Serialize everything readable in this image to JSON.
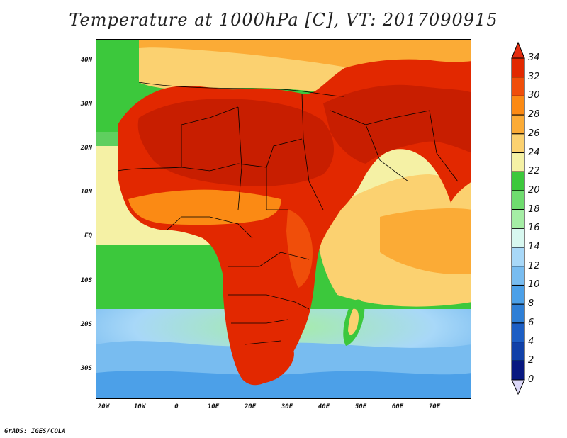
{
  "title": "Temperature at 1000hPa [C], VT: 2017090915",
  "footer": "GrADS: IGES/COLA",
  "map": {
    "lat_labels": [
      "40N",
      "30N",
      "20N",
      "10N",
      "EQ",
      "10S",
      "20S",
      "30S"
    ],
    "lon_labels": [
      "20W",
      "10W",
      "0",
      "10E",
      "20E",
      "30E",
      "40E",
      "50E",
      "60E",
      "70E"
    ]
  },
  "colorbar": {
    "labels": [
      "34",
      "32",
      "30",
      "28",
      "26",
      "24",
      "22",
      "20",
      "18",
      "16",
      "14",
      "12",
      "10",
      "8",
      "6",
      "4",
      "2",
      "0"
    ],
    "colors": [
      "#c81e00",
      "#e22800",
      "#f04e0a",
      "#fb8a14",
      "#fbab36",
      "#fbd170",
      "#f5f1a5",
      "#3cc83c",
      "#6fdc6f",
      "#a5eda5",
      "#d8f8f0",
      "#a8d8f8",
      "#78bcf0",
      "#4ca0e8",
      "#2f7fd6",
      "#1c5ec4",
      "#1040a8",
      "#081880"
    ],
    "top_color": "#e52d10",
    "bottom_color": "#dcd8f8"
  }
}
